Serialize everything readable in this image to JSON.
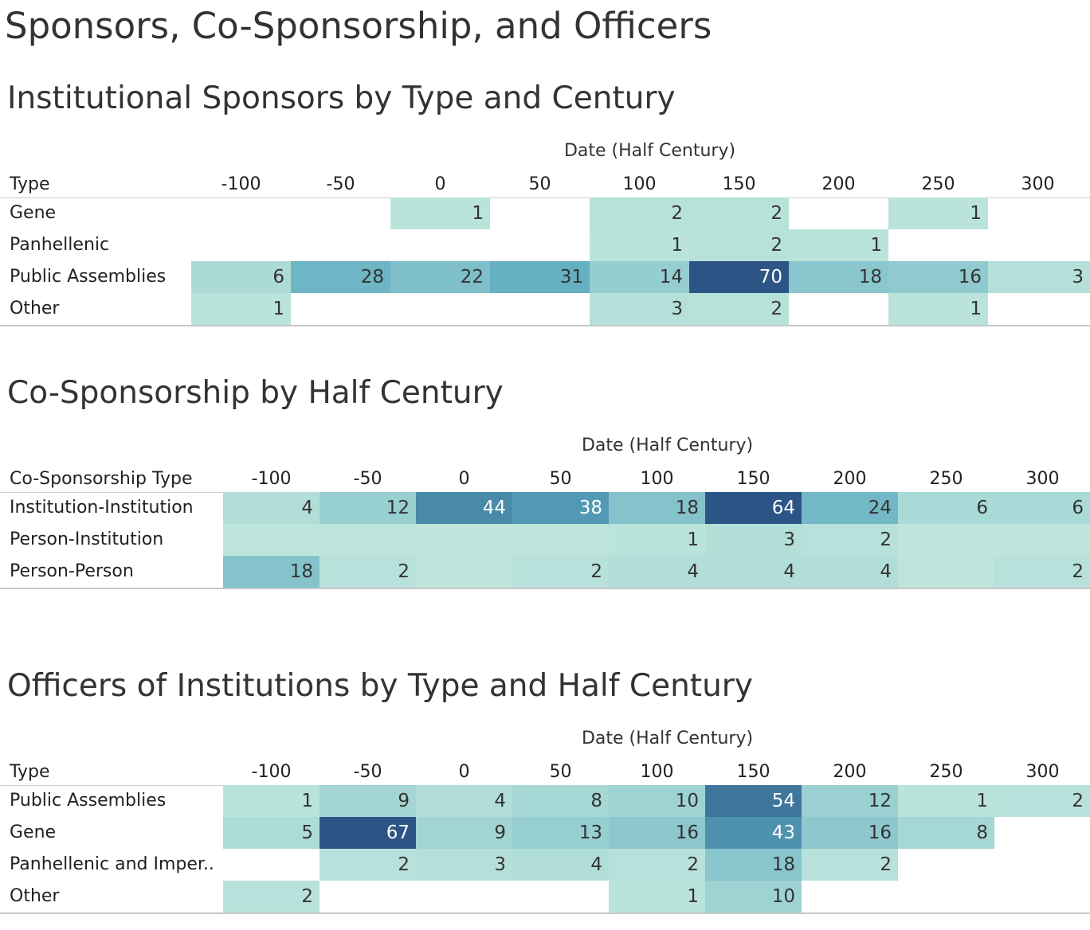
{
  "dashboard": {
    "title": "Sponsors, Co-Sponsorship, and Officers"
  },
  "colors": {
    "scale_low": "#bde5dc",
    "scale_high": "#2c5585",
    "text_dark": "#333333",
    "text_light": "#ffffff",
    "gridline": "#cfcfcf"
  },
  "chart_data": [
    {
      "type": "heatmap",
      "title": "Institutional Sponsors by Type and Century",
      "column_axis_title": "Date (Half Century)",
      "row_header": "Type",
      "columns": [
        "-100",
        "-50",
        "0",
        "50",
        "100",
        "150",
        "200",
        "250",
        "300"
      ],
      "rows": [
        {
          "label": "Gene",
          "values": [
            null,
            null,
            1,
            null,
            2,
            2,
            null,
            1,
            null
          ]
        },
        {
          "label": "Panhellenic",
          "values": [
            null,
            null,
            null,
            null,
            1,
            2,
            1,
            null,
            null
          ]
        },
        {
          "label": "Public Assemblies",
          "values": [
            6,
            28,
            22,
            31,
            14,
            70,
            18,
            16,
            3
          ]
        },
        {
          "label": "Other",
          "values": [
            1,
            null,
            null,
            null,
            3,
            2,
            null,
            1,
            null
          ]
        }
      ]
    },
    {
      "type": "heatmap",
      "title": "Co-Sponsorship by Half Century",
      "column_axis_title": "Date (Half Century)",
      "row_header": "Co-Sponsorship Type",
      "columns": [
        "-100",
        "-50",
        "0",
        "50",
        "100",
        "150",
        "200",
        "250",
        "300"
      ],
      "rows": [
        {
          "label": "Institution-Institution",
          "values": [
            4,
            12,
            44,
            38,
            18,
            64,
            24,
            6,
            6
          ]
        },
        {
          "label": "Person-Institution",
          "values": [
            0,
            0,
            0,
            0,
            1,
            3,
            2,
            0,
            0
          ]
        },
        {
          "label": "Person-Person",
          "values": [
            18,
            2,
            0,
            2,
            4,
            4,
            4,
            0,
            2
          ]
        }
      ]
    },
    {
      "type": "heatmap",
      "title": "Officers of Institutions by Type and Half Century",
      "column_axis_title": "Date (Half Century)",
      "row_header": "Type",
      "columns": [
        "-100",
        "-50",
        "0",
        "50",
        "100",
        "150",
        "200",
        "250",
        "300"
      ],
      "rows": [
        {
          "label": "Public Assemblies",
          "values": [
            1,
            9,
            4,
            8,
            10,
            54,
            12,
            1,
            2
          ]
        },
        {
          "label": "Gene",
          "values": [
            5,
            67,
            9,
            13,
            16,
            43,
            16,
            8,
            null
          ]
        },
        {
          "label": "Panhellenic and Imper..",
          "values": [
            null,
            2,
            3,
            4,
            2,
            18,
            2,
            null,
            null
          ]
        },
        {
          "label": "Other",
          "values": [
            2,
            null,
            null,
            null,
            1,
            10,
            null,
            null,
            null
          ]
        }
      ]
    }
  ]
}
